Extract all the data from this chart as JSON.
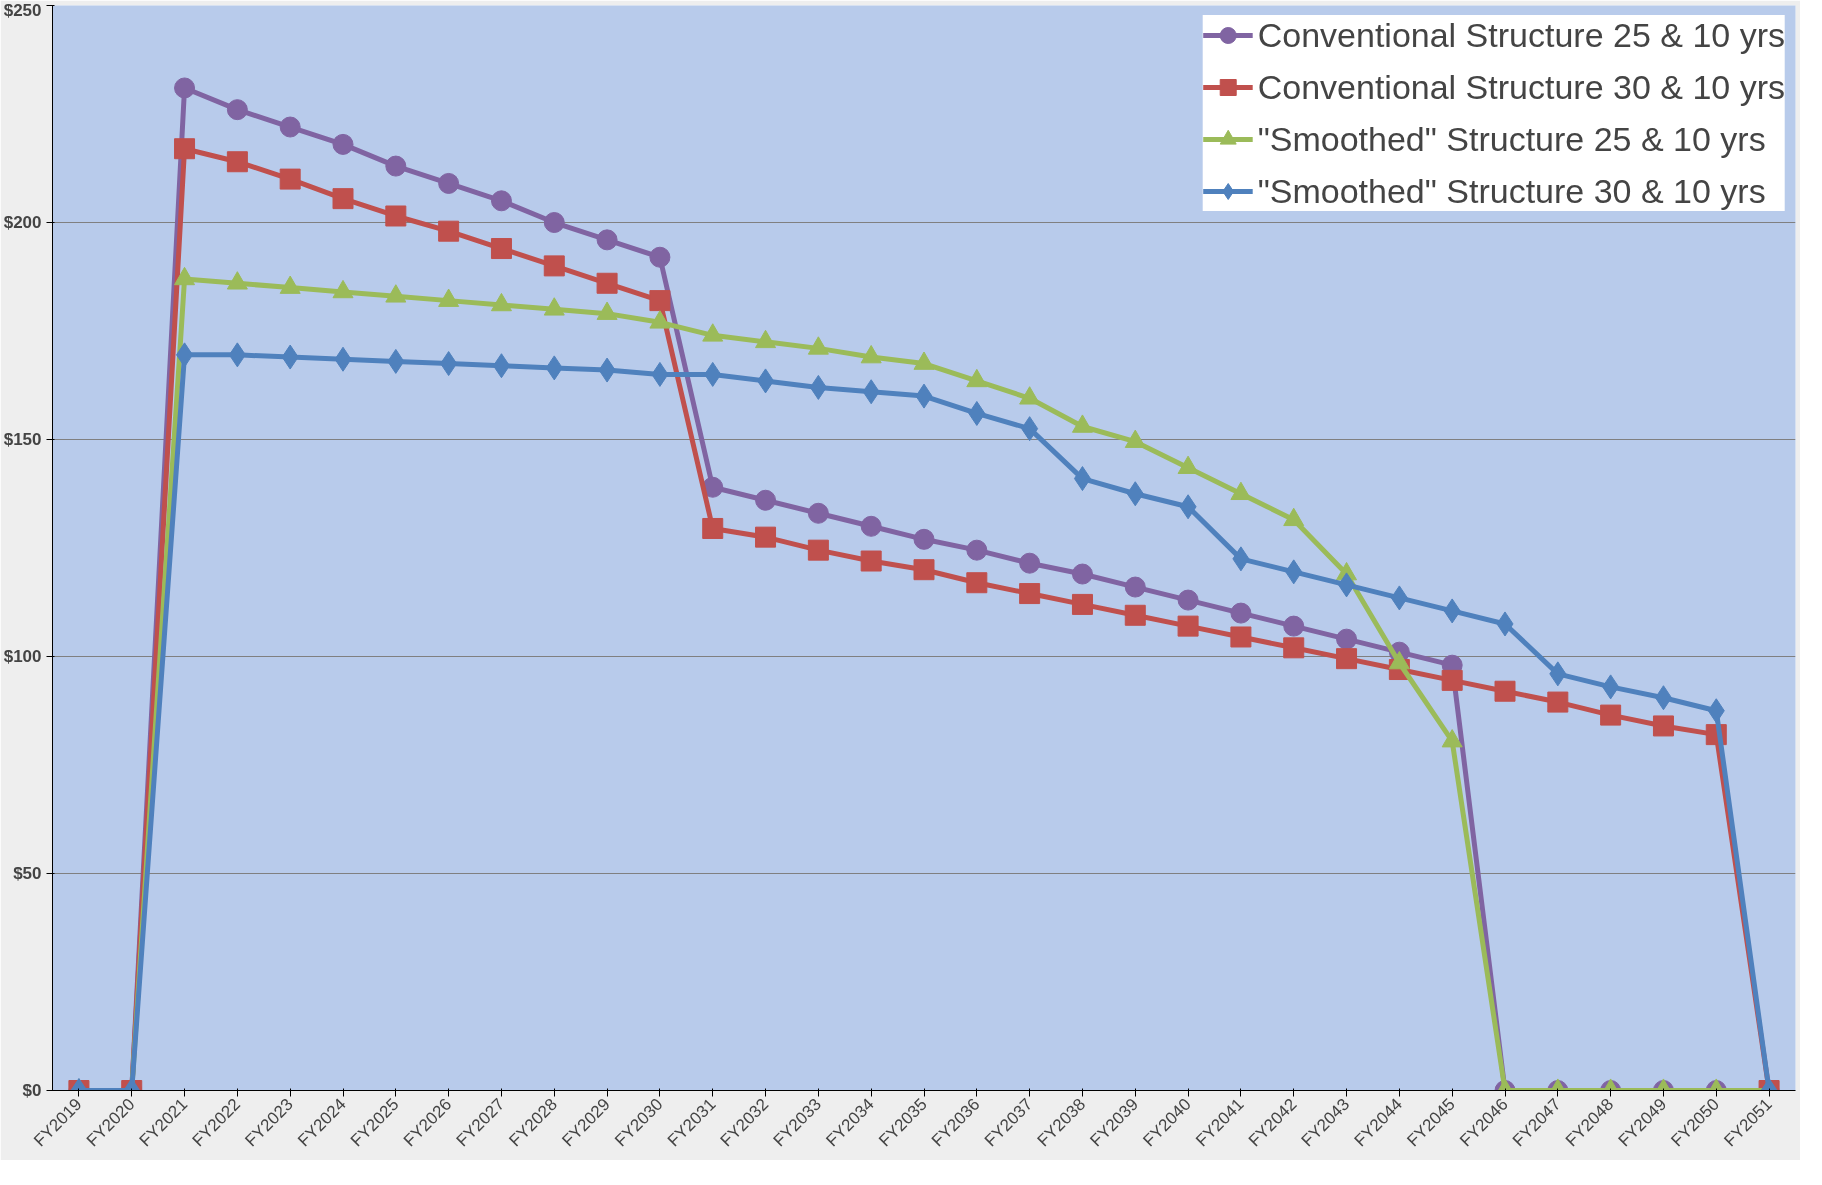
{
  "chart_data": {
    "type": "line",
    "categories": [
      "FY2019",
      "FY2020",
      "FY2021",
      "FY2022",
      "FY2023",
      "FY2024",
      "FY2025",
      "FY2026",
      "FY2027",
      "FY2028",
      "FY2029",
      "FY2030",
      "FY2031",
      "FY2032",
      "FY2033",
      "FY2034",
      "FY2035",
      "FY2036",
      "FY2037",
      "FY2038",
      "FY2039",
      "FY2040",
      "FY2041",
      "FY2042",
      "FY2043",
      "FY2044",
      "FY2045",
      "FY2046",
      "FY2047",
      "FY2048",
      "FY2049",
      "FY2050",
      "FY2051"
    ],
    "series": [
      {
        "name": "Conventional Structure 25 & 10 yrs",
        "color": "#8064a2",
        "marker": "circle",
        "values": [
          0,
          0,
          231,
          226,
          222,
          218,
          213,
          209,
          205,
          200,
          196,
          192,
          139,
          136,
          133,
          130,
          127,
          124.5,
          121.5,
          119,
          116,
          113,
          110,
          107,
          104,
          101,
          98,
          0,
          0,
          0,
          0,
          0,
          0
        ]
      },
      {
        "name": "Conventional Structure 30 & 10 yrs",
        "color": "#c0504d",
        "marker": "square",
        "values": [
          0,
          0,
          217,
          214,
          210,
          205.5,
          201.5,
          198,
          194,
          190,
          186,
          182,
          129.5,
          127.5,
          124.5,
          122,
          120,
          117,
          114.5,
          112,
          109.5,
          107,
          104.5,
          102,
          99.5,
          97,
          94.5,
          92,
          89.5,
          86.5,
          84,
          82,
          0
        ]
      },
      {
        "name": "\"Smoothed\" Structure 25 & 10 yrs",
        "color": "#9bbb59",
        "marker": "triangle",
        "values": [
          0,
          0,
          187,
          186,
          185,
          184,
          183,
          182,
          181,
          180,
          179,
          177,
          174,
          172.5,
          171,
          169,
          167.5,
          163.5,
          159.5,
          153,
          149.5,
          143.5,
          137.5,
          131.5,
          119,
          98.5,
          80.5,
          0,
          0,
          0,
          0,
          0,
          0
        ]
      },
      {
        "name": "\"Smoothed\" Structure 30 & 10 yrs",
        "color": "#4f81bd",
        "marker": "diamond",
        "values": [
          0,
          0,
          169.5,
          169.5,
          169,
          168.5,
          168,
          167.5,
          167,
          166.5,
          166,
          165,
          165,
          163.5,
          162,
          161,
          160,
          156,
          152.5,
          141,
          137.5,
          134.5,
          122.5,
          119.5,
          116.5,
          113.5,
          110.5,
          107.5,
          96,
          93,
          90.5,
          87.5,
          0
        ]
      }
    ],
    "ylim": [
      0,
      250
    ],
    "yticks": [
      {
        "value": 0,
        "label": "$0"
      },
      {
        "value": 50,
        "label": "$50"
      },
      {
        "value": 100,
        "label": "$100"
      },
      {
        "value": 150,
        "label": "$150"
      },
      {
        "value": 200,
        "label": "$200"
      },
      {
        "value": 250,
        "label": "$250"
      }
    ],
    "grid": "y",
    "legend": "top right",
    "line_style": "solid"
  }
}
